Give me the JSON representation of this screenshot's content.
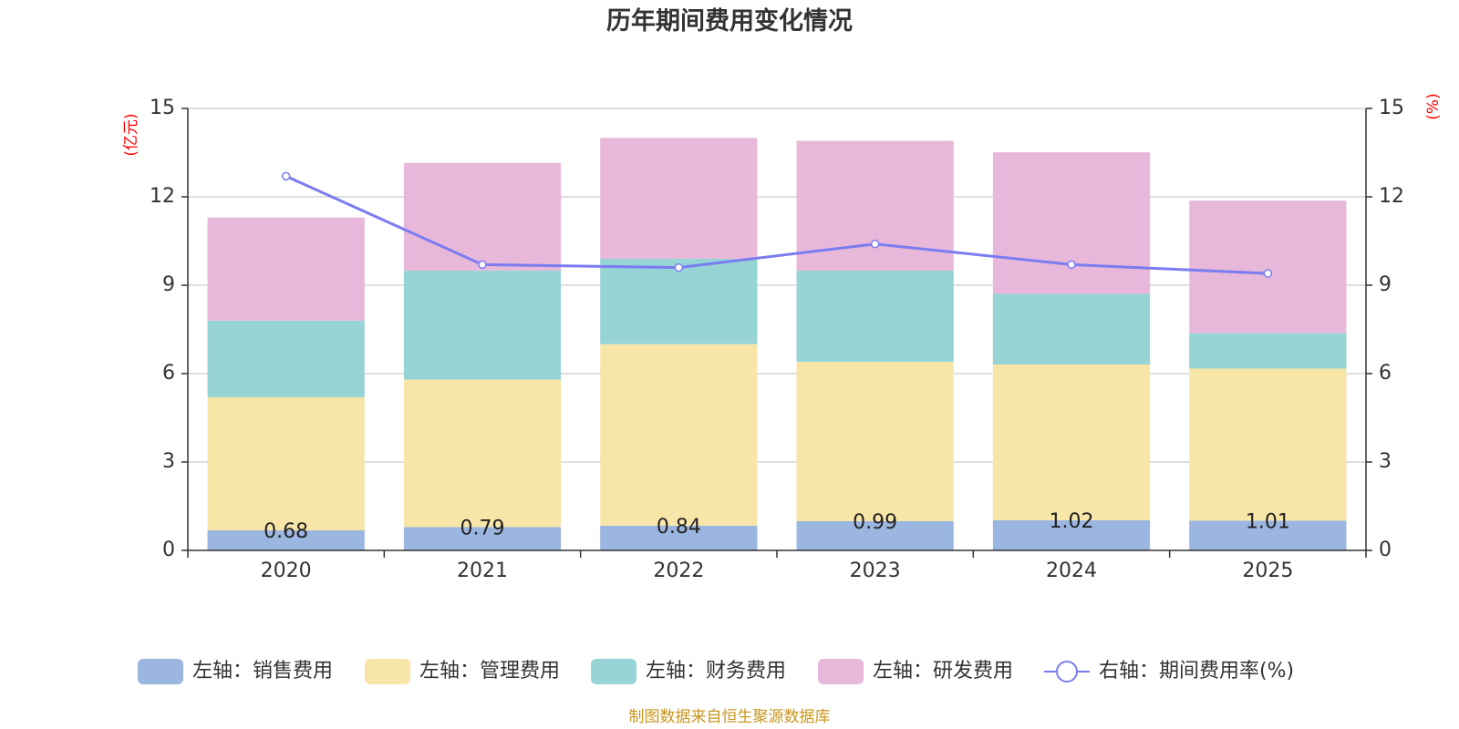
{
  "chart_data": {
    "type": "bar",
    "title": "历年期间费用变化情况",
    "categories": [
      "2020",
      "2021",
      "2022",
      "2023",
      "2024",
      "2025"
    ],
    "y_left": {
      "unit": "(亿元)",
      "ylim": [
        0,
        15
      ],
      "ticks": [
        0,
        3,
        6,
        9,
        12,
        15
      ]
    },
    "y_right": {
      "unit": "(%)",
      "ylim": [
        0,
        15
      ],
      "ticks": [
        0,
        3,
        6,
        9,
        12,
        15
      ]
    },
    "series": [
      {
        "name": "左轴：销售费用",
        "type": "bar",
        "axis": "left",
        "color": "#9bb6e1",
        "values": [
          0.68,
          0.79,
          0.84,
          0.99,
          1.02,
          1.01
        ],
        "labels": [
          "0.68",
          "0.79",
          "0.84",
          "0.99",
          "1.02",
          "1.01"
        ]
      },
      {
        "name": "左轴：管理费用",
        "type": "bar",
        "axis": "left",
        "color": "#f8e6a8",
        "values": [
          4.52,
          5.01,
          6.16,
          5.41,
          5.29,
          5.16
        ]
      },
      {
        "name": "左轴：财务费用",
        "type": "bar",
        "axis": "left",
        "color": "#97d4d5",
        "values": [
          2.6,
          3.7,
          2.9,
          3.1,
          2.4,
          1.2
        ]
      },
      {
        "name": "左轴：研发费用",
        "type": "bar",
        "axis": "left",
        "color": "#e7b8d9",
        "values": [
          3.5,
          3.65,
          4.1,
          4.4,
          4.8,
          4.5
        ]
      },
      {
        "name": "右轴：期间费用率(%)",
        "type": "line",
        "axis": "right",
        "color": "#7a7cf0",
        "values": [
          12.7,
          9.7,
          9.6,
          10.4,
          9.7,
          9.4
        ]
      }
    ],
    "grid": true,
    "legend_position": "bottom"
  },
  "footer": {
    "source": "制图数据来自恒生聚源数据库"
  }
}
